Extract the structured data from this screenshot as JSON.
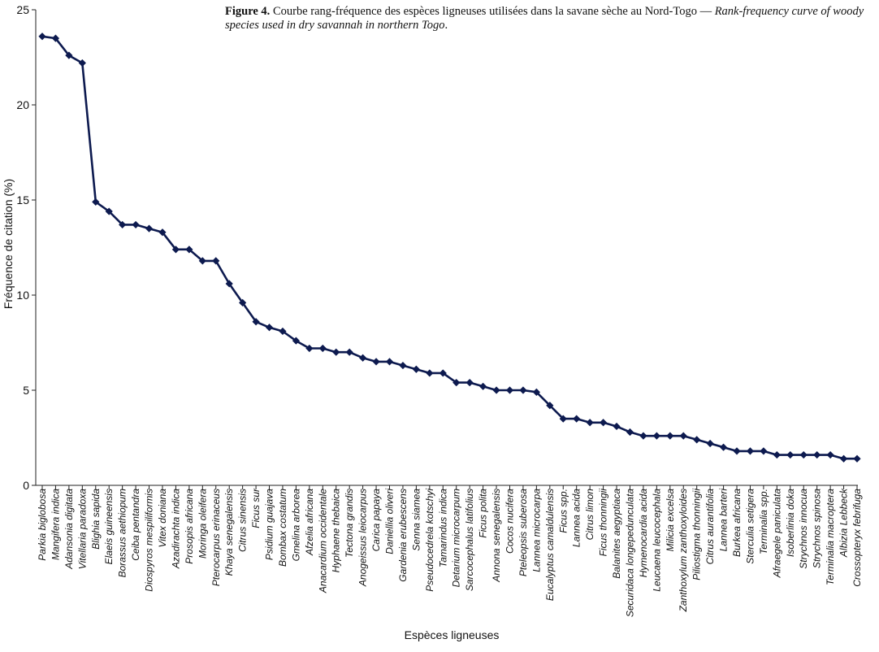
{
  "caption": {
    "label": "Figure 4.",
    "french": " Courbe rang-fréquence des espèces ligneuses utilisées dans la savane sèche au Nord-Togo — ",
    "english": "Rank-frequency curve of woody species used in dry savannah in northern Togo",
    "end": "."
  },
  "chart_data": {
    "type": "line",
    "title": "",
    "xlabel": "Espèces ligneuses",
    "ylabel": "Fréquence de citation (%)",
    "ylim": [
      0,
      25
    ],
    "yticks": [
      0,
      5,
      10,
      15,
      20,
      25
    ],
    "grid": false,
    "marker": "diamond",
    "color": "#0d1a4f",
    "categories": [
      "Parkia biglobosa",
      "Mangifera indica",
      "Adansonia digitata",
      "Vitellaria paradoxa",
      "Blighia sapida",
      "Elaeis guineensis",
      "Borassus aethiopum",
      "Ceiba pentandra",
      "Diospyros mespiliformis",
      "Vitex doniana",
      "Azadirachta indica",
      "Prosopis africana",
      "Moringa oleifera",
      "Pterocarpus erinaceus",
      "Khaya senegalensis",
      "Citrus sinensis",
      "Ficus sur",
      "Psidium guajava",
      "Bombax costatum",
      "Gmelina arborea",
      "Afzelia africana",
      "Anacardium occidentale",
      "Hyphaene thebaica",
      "Tectona grandis",
      "Anogeissus leiocarpus",
      "Carica papaya",
      "Daniellia oliveri",
      "Gardenia erubescens",
      "Senna siamea",
      "Pseudocedrela kotschyi",
      "Tamarindus indica",
      "Detarium microcarpum",
      "Sarcocephalus latifolius",
      "Ficus polita",
      "Annona senegalensis",
      "Cocos nucifera",
      "Pteleopsis suberosa",
      "Lannea microcarpa",
      "Eucalyptus camaldulensis",
      "Ficus spp.",
      "Lannea acida",
      "Citrus limon",
      "Ficus thonningii",
      "Balanites aegyptiaca",
      "Securidaca longepedunculata",
      "Hymenocardia acida",
      "Leucaena leucocephala",
      "Milicia excelsa",
      "Zanthoxylum zanthoxyloides",
      "Piliostigma thonningii",
      "Citrus aurantifolia",
      "Lannea barteri",
      "Burkea africana",
      "Sterculia setigera",
      "Terminalia spp.",
      "Afraegele paniculata",
      "Isoberlinia doka",
      "Strychnos innocua",
      "Strychnos spinosa",
      "Terminalia macroptera",
      "Albizia Lebbeck",
      "Crossopteryx febrifuga"
    ],
    "values": [
      23.6,
      23.5,
      22.6,
      22.2,
      14.9,
      14.4,
      13.7,
      13.7,
      13.5,
      13.3,
      12.4,
      12.4,
      11.8,
      11.8,
      10.6,
      9.6,
      8.6,
      8.3,
      8.1,
      7.6,
      7.2,
      7.2,
      7.0,
      7.0,
      6.7,
      6.5,
      6.5,
      6.3,
      6.1,
      5.9,
      5.9,
      5.4,
      5.4,
      5.2,
      5.0,
      5.0,
      5.0,
      4.9,
      4.2,
      3.5,
      3.5,
      3.3,
      3.3,
      3.1,
      2.8,
      2.6,
      2.6,
      2.6,
      2.6,
      2.4,
      2.2,
      2.0,
      1.8,
      1.8,
      1.8,
      1.6,
      1.6,
      1.6,
      1.6,
      1.6,
      1.4,
      1.4
    ]
  }
}
